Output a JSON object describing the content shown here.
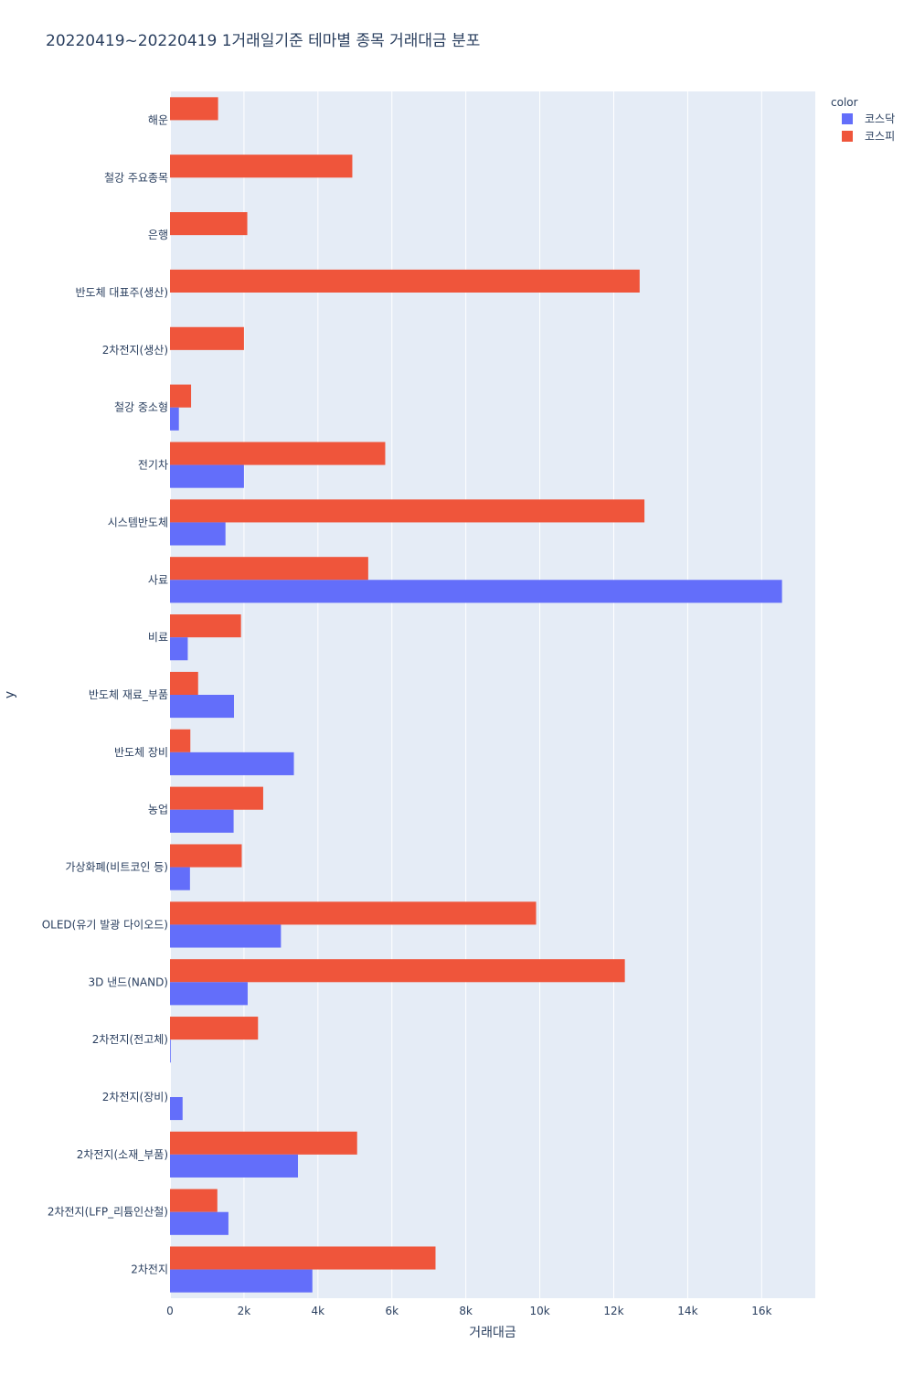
{
  "chart_data": {
    "type": "bar",
    "orientation": "horizontal",
    "title": "20220419~20220419 1거래일기준 테마별 종목 거래대금 분포",
    "xlabel": "거래대금",
    "ylabel": "y",
    "xlim": [
      0,
      17450
    ],
    "xticks": [
      0,
      2000,
      4000,
      6000,
      8000,
      10000,
      12000,
      14000,
      16000
    ],
    "xtick_labels": [
      "0",
      "2k",
      "4k",
      "6k",
      "8k",
      "10k",
      "12k",
      "14k",
      "16k"
    ],
    "categories": [
      "2차전지",
      "2차전지(LFP_리튬인산철)",
      "2차전지(소재_부품)",
      "2차전지(장비)",
      "2차전지(전고체)",
      "3D 낸드(NAND)",
      "OLED(유기 발광 다이오드)",
      "가상화폐(비트코인 등)",
      "농업",
      "반도체 장비",
      "반도체 재료_부품",
      "비료",
      "사료",
      "시스템반도체",
      "전기차",
      "철강 중소형",
      "2차전지(생산)",
      "반도체 대표주(생산)",
      "은행",
      "철강 주요종목",
      "해운"
    ],
    "series": [
      {
        "name": "코스닥",
        "color": "#636efa",
        "values": [
          3850,
          1580,
          3460,
          340,
          20,
          2100,
          3000,
          540,
          1720,
          3350,
          1730,
          480,
          16550,
          1500,
          2000,
          240,
          0,
          0,
          0,
          0,
          0
        ]
      },
      {
        "name": "코스피",
        "color": "#ef553b",
        "values": [
          7180,
          1280,
          5060,
          0,
          2380,
          12300,
          9900,
          1940,
          2520,
          550,
          760,
          1920,
          5360,
          12830,
          5820,
          570,
          2000,
          12700,
          2090,
          4930,
          1300
        ]
      }
    ],
    "legend": {
      "title": "color",
      "position": "top-right"
    },
    "colors": {
      "plot_bg": "#e5ecf6",
      "grid": "#ffffff",
      "text": "#2a3f5f"
    }
  }
}
